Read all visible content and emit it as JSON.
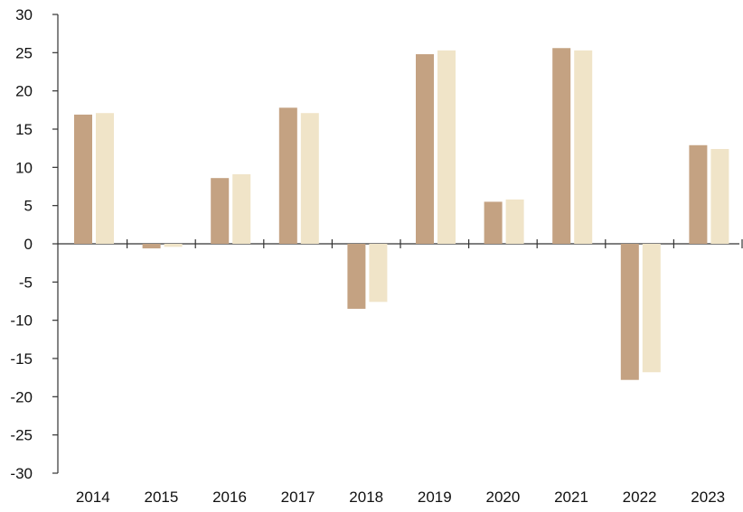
{
  "chart_data": {
    "type": "bar",
    "title": "",
    "xlabel": "",
    "ylabel": "",
    "categories": [
      "2014",
      "2015",
      "2016",
      "2017",
      "2018",
      "2019",
      "2020",
      "2021",
      "2022",
      "2023"
    ],
    "series": [
      {
        "values": [
          16.9,
          -0.6,
          8.6,
          17.8,
          -8.5,
          24.8,
          5.5,
          25.6,
          -17.8,
          12.9
        ],
        "color": "#c4a282"
      },
      {
        "values": [
          17.1,
          -0.4,
          9.1,
          17.1,
          -7.6,
          25.3,
          5.8,
          25.3,
          -16.8,
          12.4
        ],
        "color": "#f0e4c8"
      }
    ],
    "ylim": [
      -30,
      30
    ],
    "yticks": [
      "-30",
      "-25",
      "-20",
      "-15",
      "-10",
      "-5",
      "0",
      "5",
      "10",
      "15",
      "20",
      "25",
      "30"
    ],
    "grid": false,
    "legend": "none"
  }
}
